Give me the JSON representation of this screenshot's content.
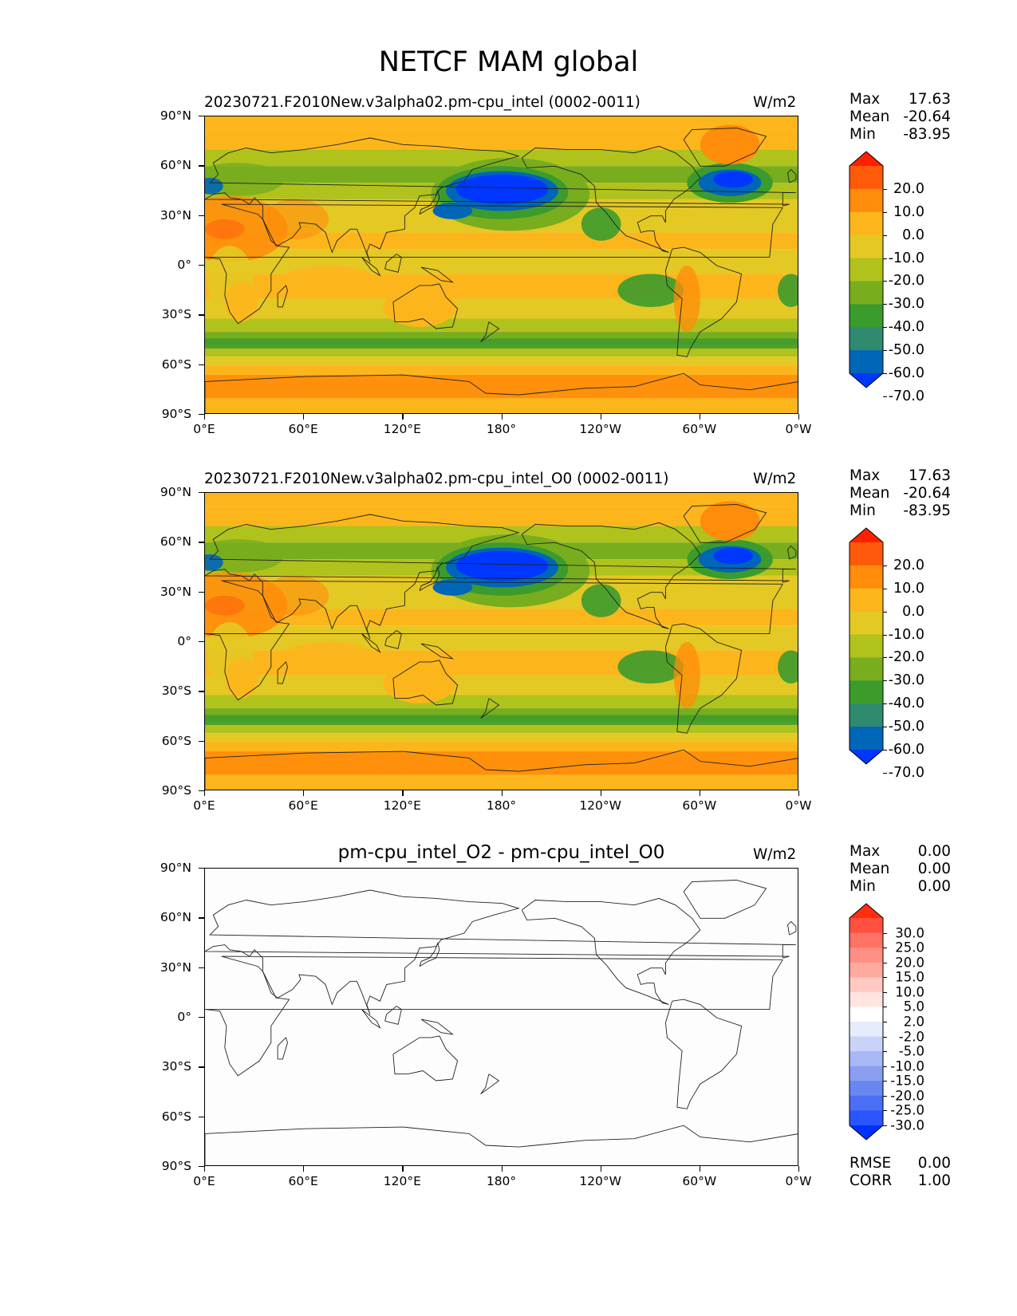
{
  "title": "NETCF MAM global",
  "panels": [
    {
      "title": "20230721.F2010New.v3alpha02.pm-cpu_intel (0002-0011)",
      "units": "W/m2",
      "stats": {
        "max_label": "Max",
        "max": "17.63",
        "mean_label": "Mean",
        "mean": "-20.64",
        "min_label": "Min",
        "min": "-83.95"
      },
      "colorbar": {
        "colors": [
          "#0037ff",
          "#0066b8",
          "#2f8a70",
          "#3c9b2d",
          "#78ad1e",
          "#b0c21c",
          "#e4c824",
          "#fcb61c",
          "#ff8c0a",
          "#ff5a0a",
          "#ff2000"
        ],
        "labels": [
          "20.0",
          "10.0",
          "0.0",
          "-10.0",
          "-20.0",
          "-30.0",
          "-40.0",
          "-50.0",
          "-60.0",
          "-70.0"
        ]
      }
    },
    {
      "title": "20230721.F2010New.v3alpha02.pm-cpu_intel_O0 (0002-0011)",
      "units": "W/m2",
      "stats": {
        "max_label": "Max",
        "max": "17.63",
        "mean_label": "Mean",
        "mean": "-20.64",
        "min_label": "Min",
        "min": "-83.95"
      },
      "colorbar": {
        "colors": [
          "#0037ff",
          "#0066b8",
          "#2f8a70",
          "#3c9b2d",
          "#78ad1e",
          "#b0c21c",
          "#e4c824",
          "#fcb61c",
          "#ff8c0a",
          "#ff5a0a",
          "#ff2000"
        ],
        "labels": [
          "20.0",
          "10.0",
          "0.0",
          "-10.0",
          "-20.0",
          "-30.0",
          "-40.0",
          "-50.0",
          "-60.0",
          "-70.0"
        ]
      }
    },
    {
      "title": "pm-cpu_intel_O2 - pm-cpu_intel_O0",
      "units": "W/m2",
      "stats": {
        "max_label": "Max",
        "max": "0.00",
        "mean_label": "Mean",
        "mean": "0.00",
        "min_label": "Min",
        "min": "0.00"
      },
      "extra_stats": {
        "rmse_label": "RMSE",
        "rmse": "0.00",
        "corr_label": "CORR",
        "corr": "1.00"
      },
      "colorbar": {
        "colors": [
          "#0032ff",
          "#2a55ff",
          "#4b6ef5",
          "#6a86f0",
          "#8a9ff2",
          "#a9b8f6",
          "#c9d3fa",
          "#e6ecfd",
          "#ffffff",
          "#ffe4e0",
          "#ffc8c0",
          "#ffaaa0",
          "#ff8f84",
          "#ff7264",
          "#ff5040",
          "#ff2e10"
        ],
        "labels": [
          "30.0",
          "25.0",
          "20.0",
          "15.0",
          "10.0",
          "5.0",
          "2.0",
          "-2.0",
          "-5.0",
          "-10.0",
          "-15.0",
          "-20.0",
          "-25.0",
          "-30.0"
        ]
      }
    }
  ],
  "axes": {
    "y_ticks": [
      "90°N",
      "60°N",
      "30°N",
      "0°",
      "30°S",
      "60°S",
      "90°S"
    ],
    "x_ticks": [
      "0°E",
      "60°E",
      "120°E",
      "180°",
      "120°W",
      "60°W",
      "0°W"
    ]
  },
  "chart_data": [
    {
      "type": "heatmap",
      "title": "20230721.F2010New.v3alpha02.pm-cpu_intel (0002-0011)",
      "variable": "NETCF",
      "season": "MAM",
      "units": "W/m2",
      "xlim": [
        0,
        360
      ],
      "ylim": [
        -90,
        90
      ],
      "color_levels": [
        -70,
        -60,
        -50,
        -40,
        -30,
        -20,
        -10,
        0,
        10,
        20
      ],
      "max": 17.63,
      "mean": -20.64,
      "min": -83.95
    },
    {
      "type": "heatmap",
      "title": "20230721.F2010New.v3alpha02.pm-cpu_intel_O0 (0002-0011)",
      "variable": "NETCF",
      "season": "MAM",
      "units": "W/m2",
      "xlim": [
        0,
        360
      ],
      "ylim": [
        -90,
        90
      ],
      "color_levels": [
        -70,
        -60,
        -50,
        -40,
        -30,
        -20,
        -10,
        0,
        10,
        20
      ],
      "max": 17.63,
      "mean": -20.64,
      "min": -83.95
    },
    {
      "type": "heatmap",
      "title": "pm-cpu_intel_O2 - pm-cpu_intel_O0",
      "variable": "NETCF",
      "units": "W/m2",
      "xlim": [
        0,
        360
      ],
      "ylim": [
        -90,
        90
      ],
      "color_levels": [
        -30,
        -25,
        -20,
        -15,
        -10,
        -5,
        -2,
        2,
        5,
        10,
        15,
        20,
        25,
        30
      ],
      "max": 0.0,
      "mean": 0.0,
      "min": 0.0,
      "rmse": 0.0,
      "corr": 1.0
    }
  ]
}
